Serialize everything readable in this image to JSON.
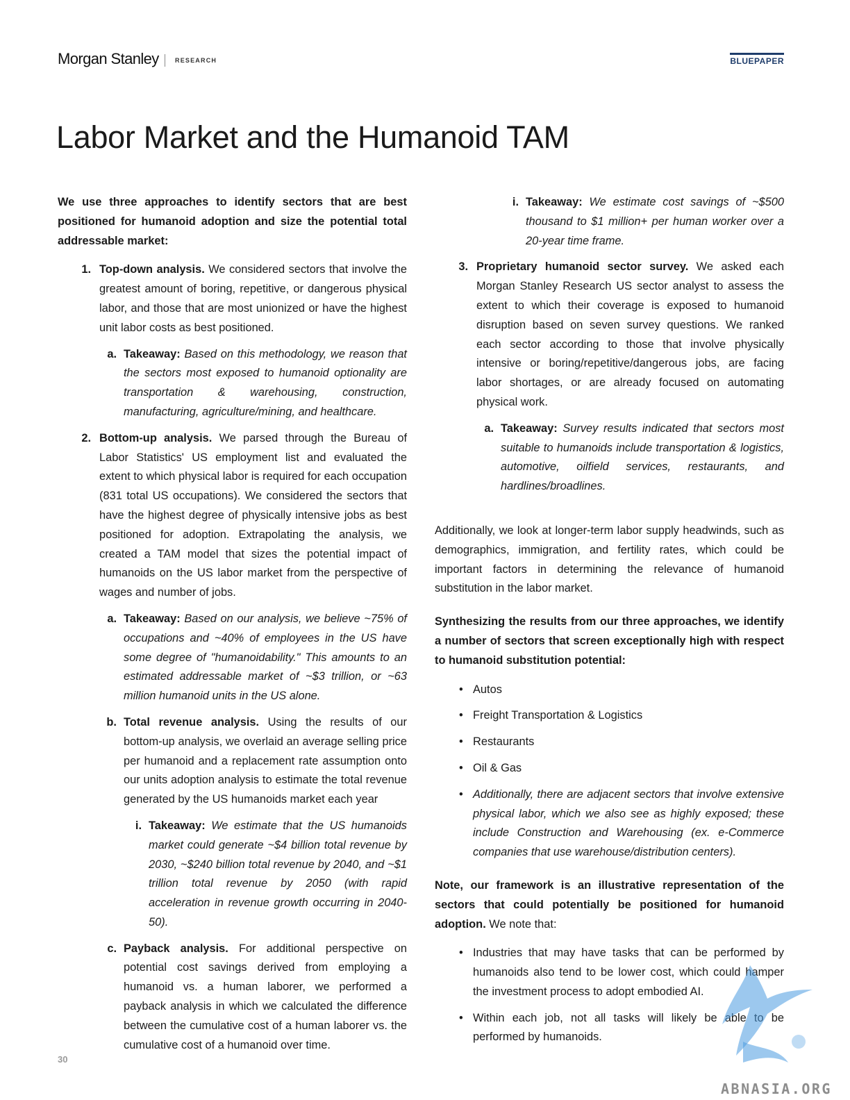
{
  "header": {
    "brand": "Morgan Stanley",
    "section": "RESEARCH",
    "badge": "BLUEPAPER",
    "badge_color": "#1f3d6b"
  },
  "title": "Labor Market and the Humanoid TAM",
  "left": {
    "intro": "We use three approaches to identify sectors that are best positioned for humanoid adoption and size the potential total addressable market:",
    "item1": {
      "marker": "1.",
      "lead": "Top-down analysis.",
      "text": " We considered sectors that involve the greatest amount of boring, repetitive, or dangerous physical labor, and those that are most unionized or have the highest unit labor costs as best positioned."
    },
    "item1a": {
      "marker": "a.",
      "lead": "Takeaway:",
      "text": " Based on this methodology, we reason that the sectors most exposed to humanoid optionality are transportation & warehousing, construction, manufacturing, agriculture/mining, and healthcare."
    },
    "item2": {
      "marker": "2.",
      "lead": "Bottom-up analysis.",
      "text": " We parsed through the Bureau of Labor Statistics' US employment list and evaluated the extent to which physical labor is required for each occupation (831 total US occupations). We considered the sectors that have the highest degree of physically intensive jobs as best positioned for adoption. Extrapolating the analysis, we created a TAM model that sizes the potential impact of humanoids on the US labor market from the perspective of wages and number of jobs."
    },
    "item2a": {
      "marker": "a.",
      "lead": "Takeaway:",
      "text": " Based on our analysis, we believe ~75% of occupations and ~40% of employees in the US have some degree of \"humanoidability.\" This amounts to an estimated addressable market of ~$3 trillion, or ~63 million humanoid units in the US alone."
    },
    "item2b": {
      "marker": "b.",
      "lead": "Total revenue analysis.",
      "text": " Using the results of our bottom-up analysis, we overlaid an average selling price per humanoid and a replacement rate assumption onto our units adoption analysis to estimate the total revenue generated by the US humanoids market each year"
    },
    "item2bi": {
      "marker": "i.",
      "lead": "Takeaway:",
      "text": " We estimate that the US humanoids market could generate ~$4 billion total revenue by 2030, ~$240 billion total revenue by 2040, and ~$1 trillion total revenue by 2050 (with rapid acceleration in revenue growth occurring in 2040-50)."
    },
    "item2c": {
      "marker": "c.",
      "lead": "Payback analysis.",
      "text": " For additional perspective on potential cost savings derived from employing a humanoid vs. a human laborer, we performed a payback analysis in which we calculated the difference between the cumulative cost of a human laborer vs. the cumulative cost of a humanoid over time."
    }
  },
  "right": {
    "item2ci": {
      "marker": "i.",
      "lead": "Takeaway:",
      "text": " We estimate cost savings of ~$500 thousand to $1 million+ per human worker over a 20-year time frame."
    },
    "item3": {
      "marker": "3.",
      "lead": "Proprietary humanoid sector survey.",
      "text": " We asked each Morgan Stanley Research US sector analyst to assess the extent to which their coverage is exposed to humanoid disruption based on seven survey questions. We ranked each sector according to those that involve physically intensive or boring/repetitive/dangerous jobs, are facing labor shortages, or are already focused on automating physical work."
    },
    "item3a": {
      "marker": "a.",
      "lead": "Takeaway:",
      "text": " Survey results indicated that sectors most suitable to humanoids include transportation & logistics, automotive, oilfield services, restaurants, and hardlines/broadlines."
    },
    "additionally": "Additionally, we look at longer-term labor supply headwinds, such as demographics, immigration, and fertility rates, which could be important factors in determining the relevance of humanoid substitution in the labor market.",
    "synth": "Synthesizing the results from our three approaches, we identify a number of sectors that screen exceptionally high with respect to humanoid substitution potential:",
    "sectors": [
      "Autos",
      "Freight Transportation & Logistics",
      "Restaurants",
      "Oil & Gas"
    ],
    "adjacent": "Additionally, there are adjacent sectors that involve extensive physical labor, which we also see as highly exposed; these include Construction and Warehousing (ex. e-Commerce companies that use warehouse/distribution centers).",
    "note_bold": "Note, our framework is an illustrative representation of the sectors that could potentially be positioned for humanoid adoption.",
    "note_rest": " We note that:",
    "notes": [
      "Industries that may have tasks that can be performed by humanoids also tend to be lower cost, which could hamper the investment process to adopt embodied AI.",
      "Within each job, not all tasks will likely be able to be performed by humanoids."
    ]
  },
  "page_number": "30",
  "watermark": {
    "text": "ABNASIA.ORG",
    "color": "#4a9be0"
  }
}
